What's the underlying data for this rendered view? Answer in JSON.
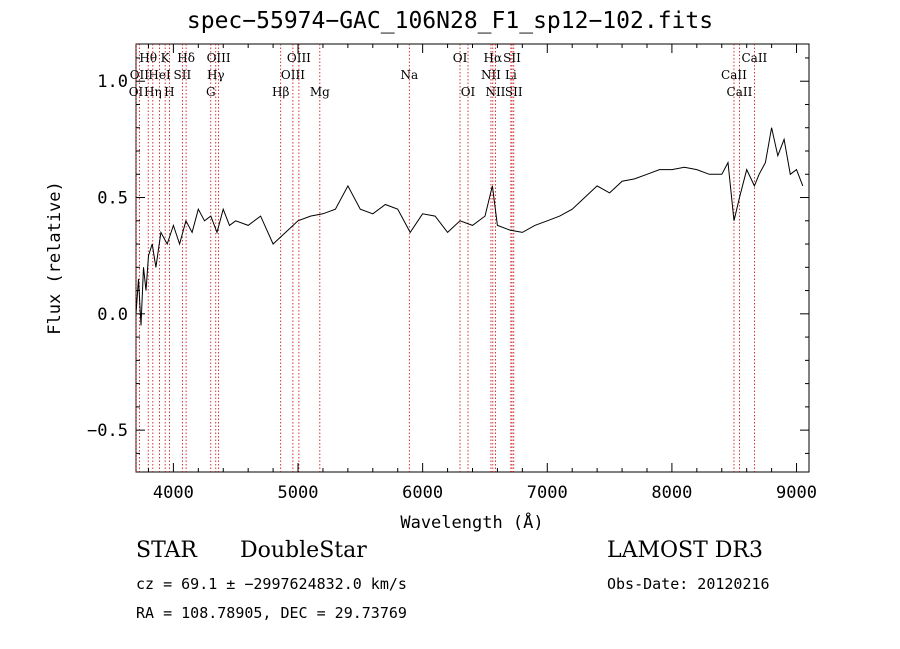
{
  "chart_data": {
    "type": "line",
    "title": "spec−55974−GAC_106N28_F1_sp12−102.fits",
    "xlabel": "Wavelength (Å)",
    "ylabel": "Flux (relative)",
    "xlim": [
      3700,
      9100
    ],
    "ylim": [
      -0.68,
      1.16
    ],
    "xticks": [
      4000,
      5000,
      6000,
      7000,
      8000,
      9000
    ],
    "xtick_labels": [
      "4000",
      "5000",
      "6000",
      "7000",
      "8000",
      "9000"
    ],
    "yticks": [
      -0.5,
      0.0,
      0.5,
      1.0
    ],
    "ytick_labels": [
      "−0.5",
      "0.0",
      "0.5",
      "1.0"
    ],
    "grid": false,
    "series": [
      {
        "x": [
          3700,
          3720,
          3740,
          3760,
          3780,
          3800,
          3830,
          3860,
          3900,
          3950,
          4000,
          4050,
          4100,
          4150,
          4200,
          4250,
          4300,
          4350,
          4400,
          4450,
          4500,
          4600,
          4700,
          4800,
          4900,
          5000,
          5100,
          5200,
          5300,
          5400,
          5500,
          5600,
          5700,
          5800,
          5900,
          6000,
          6100,
          6200,
          6300,
          6400,
          6500,
          6560,
          6600,
          6700,
          6800,
          6900,
          7000,
          7100,
          7200,
          7300,
          7400,
          7500,
          7600,
          7700,
          7800,
          7900,
          8000,
          8100,
          8200,
          8300,
          8400,
          8450,
          8498,
          8542,
          8600,
          8662,
          8700,
          8750,
          8800,
          8850,
          8900,
          8950,
          9000,
          9050
        ],
        "y": [
          0.0,
          0.15,
          -0.05,
          0.2,
          0.1,
          0.25,
          0.3,
          0.2,
          0.35,
          0.3,
          0.38,
          0.3,
          0.4,
          0.35,
          0.45,
          0.4,
          0.42,
          0.35,
          0.45,
          0.38,
          0.4,
          0.38,
          0.42,
          0.3,
          0.35,
          0.4,
          0.42,
          0.43,
          0.45,
          0.55,
          0.45,
          0.43,
          0.47,
          0.45,
          0.35,
          0.43,
          0.42,
          0.35,
          0.4,
          0.38,
          0.42,
          0.55,
          0.38,
          0.36,
          0.35,
          0.38,
          0.4,
          0.42,
          0.45,
          0.5,
          0.55,
          0.52,
          0.57,
          0.58,
          0.6,
          0.62,
          0.62,
          0.63,
          0.62,
          0.6,
          0.6,
          0.65,
          0.4,
          0.5,
          0.62,
          0.55,
          0.6,
          0.65,
          0.8,
          0.68,
          0.75,
          0.6,
          0.62,
          0.55
        ]
      }
    ],
    "lines": [
      {
        "label": "Hθ",
        "x": 3798,
        "row": 0
      },
      {
        "label": "K",
        "x": 3934,
        "row": 0
      },
      {
        "label": "Hδ",
        "x": 4102,
        "row": 0
      },
      {
        "label": "OIII",
        "x": 4363,
        "row": 0
      },
      {
        "label": "OIII",
        "x": 5007,
        "row": 0
      },
      {
        "label": "OI",
        "x": 6300,
        "row": 0
      },
      {
        "label": "Hα",
        "x": 6563,
        "row": 0
      },
      {
        "label": "SII",
        "x": 6717,
        "row": 0
      },
      {
        "label": "CaII",
        "x": 8662,
        "row": 0
      },
      {
        "label": "OII",
        "x": 3727,
        "row": 1
      },
      {
        "label": "HeI",
        "x": 3889,
        "row": 1
      },
      {
        "label": "SII",
        "x": 4072,
        "row": 1
      },
      {
        "label": "Hγ",
        "x": 4340,
        "row": 1
      },
      {
        "label": "OIII",
        "x": 4959,
        "row": 1
      },
      {
        "label": "Na",
        "x": 5893,
        "row": 1
      },
      {
        "label": "NII",
        "x": 6548,
        "row": 1
      },
      {
        "label": "Li",
        "x": 6708,
        "row": 1
      },
      {
        "label": "CaII",
        "x": 8498,
        "row": 1
      },
      {
        "label": "OI",
        "x": 3700,
        "row": 2
      },
      {
        "label": "Hη",
        "x": 3835,
        "row": 2
      },
      {
        "label": "H",
        "x": 3968,
        "row": 2
      },
      {
        "label": "G",
        "x": 4300,
        "row": 2
      },
      {
        "label": "Hβ",
        "x": 4861,
        "row": 2
      },
      {
        "label": "Mg",
        "x": 5175,
        "row": 2
      },
      {
        "label": "OI",
        "x": 6364,
        "row": 2
      },
      {
        "label": "NII",
        "x": 6584,
        "row": 2
      },
      {
        "label": "SII",
        "x": 6731,
        "row": 2
      },
      {
        "label": "CaII",
        "x": 8542,
        "row": 2
      }
    ]
  },
  "footer": {
    "class_label": "STAR",
    "subclass": "DoubleStar",
    "survey": "LAMOST DR3",
    "cz": "cz = 69.1 ± −2997624832.0 km/s",
    "obs_date": "Obs-Date: 20120216",
    "radec": "RA = 108.78905, DEC =  29.73769"
  }
}
